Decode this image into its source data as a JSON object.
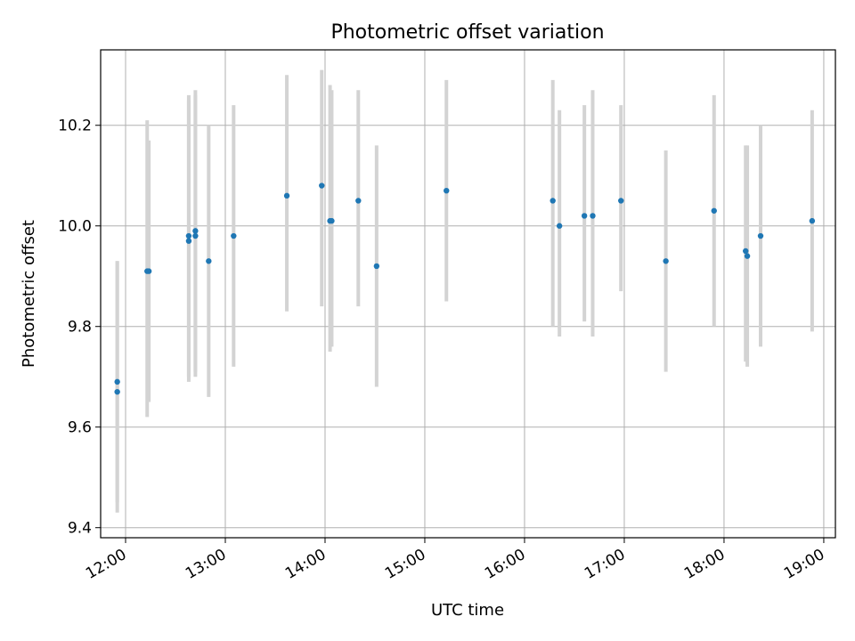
{
  "chart_data": {
    "type": "scatter",
    "title": "Photometric offset variation",
    "xlabel": "UTC time",
    "ylabel": "Photometric offset",
    "x_axis_type": "time",
    "xlim": [
      "11:45",
      "19:07"
    ],
    "ylim": [
      9.38,
      10.35
    ],
    "x_ticks": [
      "12:00",
      "13:00",
      "14:00",
      "15:00",
      "16:00",
      "17:00",
      "18:00",
      "19:00"
    ],
    "y_ticks": [
      9.4,
      9.6,
      9.8,
      10.0,
      10.2
    ],
    "y_tick_labels": [
      "9.4",
      "9.6",
      "9.8",
      "10.0",
      "10.2"
    ],
    "grid": true,
    "colors": {
      "point": "#1f77b4",
      "errorbar": "#d3d3d3",
      "grid": "#b0b0b0"
    },
    "series": [
      {
        "points": [
          {
            "x": "11:55",
            "y": 9.69,
            "ylow": 9.45,
            "yhigh": 9.93
          },
          {
            "x": "11:55",
            "y": 9.67,
            "ylow": 9.43,
            "yhigh": 9.93
          },
          {
            "x": "12:13",
            "y": 9.91,
            "ylow": 9.62,
            "yhigh": 10.21
          },
          {
            "x": "12:14",
            "y": 9.91,
            "ylow": 9.65,
            "yhigh": 10.17
          },
          {
            "x": "12:38",
            "y": 9.98,
            "ylow": 9.69,
            "yhigh": 10.26
          },
          {
            "x": "12:38",
            "y": 9.97,
            "ylow": 9.7,
            "yhigh": 10.25
          },
          {
            "x": "12:42",
            "y": 9.99,
            "ylow": 9.7,
            "yhigh": 10.27
          },
          {
            "x": "12:42",
            "y": 9.98,
            "ylow": 9.71,
            "yhigh": 10.26
          },
          {
            "x": "12:50",
            "y": 9.93,
            "ylow": 9.66,
            "yhigh": 10.2
          },
          {
            "x": "13:05",
            "y": 9.98,
            "ylow": 9.72,
            "yhigh": 10.24
          },
          {
            "x": "13:37",
            "y": 10.06,
            "ylow": 9.83,
            "yhigh": 10.3
          },
          {
            "x": "13:58",
            "y": 10.08,
            "ylow": 9.84,
            "yhigh": 10.31
          },
          {
            "x": "14:03",
            "y": 10.01,
            "ylow": 9.75,
            "yhigh": 10.28
          },
          {
            "x": "14:04",
            "y": 10.01,
            "ylow": 9.76,
            "yhigh": 10.27
          },
          {
            "x": "14:20",
            "y": 10.05,
            "ylow": 9.84,
            "yhigh": 10.27
          },
          {
            "x": "14:31",
            "y": 9.92,
            "ylow": 9.68,
            "yhigh": 10.16
          },
          {
            "x": "15:13",
            "y": 10.07,
            "ylow": 9.85,
            "yhigh": 10.29
          },
          {
            "x": "16:17",
            "y": 10.05,
            "ylow": 9.8,
            "yhigh": 10.29
          },
          {
            "x": "16:21",
            "y": 10.0,
            "ylow": 9.78,
            "yhigh": 10.23
          },
          {
            "x": "16:36",
            "y": 10.02,
            "ylow": 9.81,
            "yhigh": 10.24
          },
          {
            "x": "16:41",
            "y": 10.02,
            "ylow": 9.78,
            "yhigh": 10.27
          },
          {
            "x": "16:58",
            "y": 10.05,
            "ylow": 9.87,
            "yhigh": 10.24
          },
          {
            "x": "17:25",
            "y": 9.93,
            "ylow": 9.71,
            "yhigh": 10.15
          },
          {
            "x": "17:54",
            "y": 10.03,
            "ylow": 9.8,
            "yhigh": 10.26
          },
          {
            "x": "18:13",
            "y": 9.95,
            "ylow": 9.73,
            "yhigh": 10.16
          },
          {
            "x": "18:14",
            "y": 9.94,
            "ylow": 9.72,
            "yhigh": 10.16
          },
          {
            "x": "18:22",
            "y": 9.98,
            "ylow": 9.76,
            "yhigh": 10.2
          },
          {
            "x": "18:53",
            "y": 10.01,
            "ylow": 9.79,
            "yhigh": 10.23
          }
        ]
      }
    ]
  }
}
